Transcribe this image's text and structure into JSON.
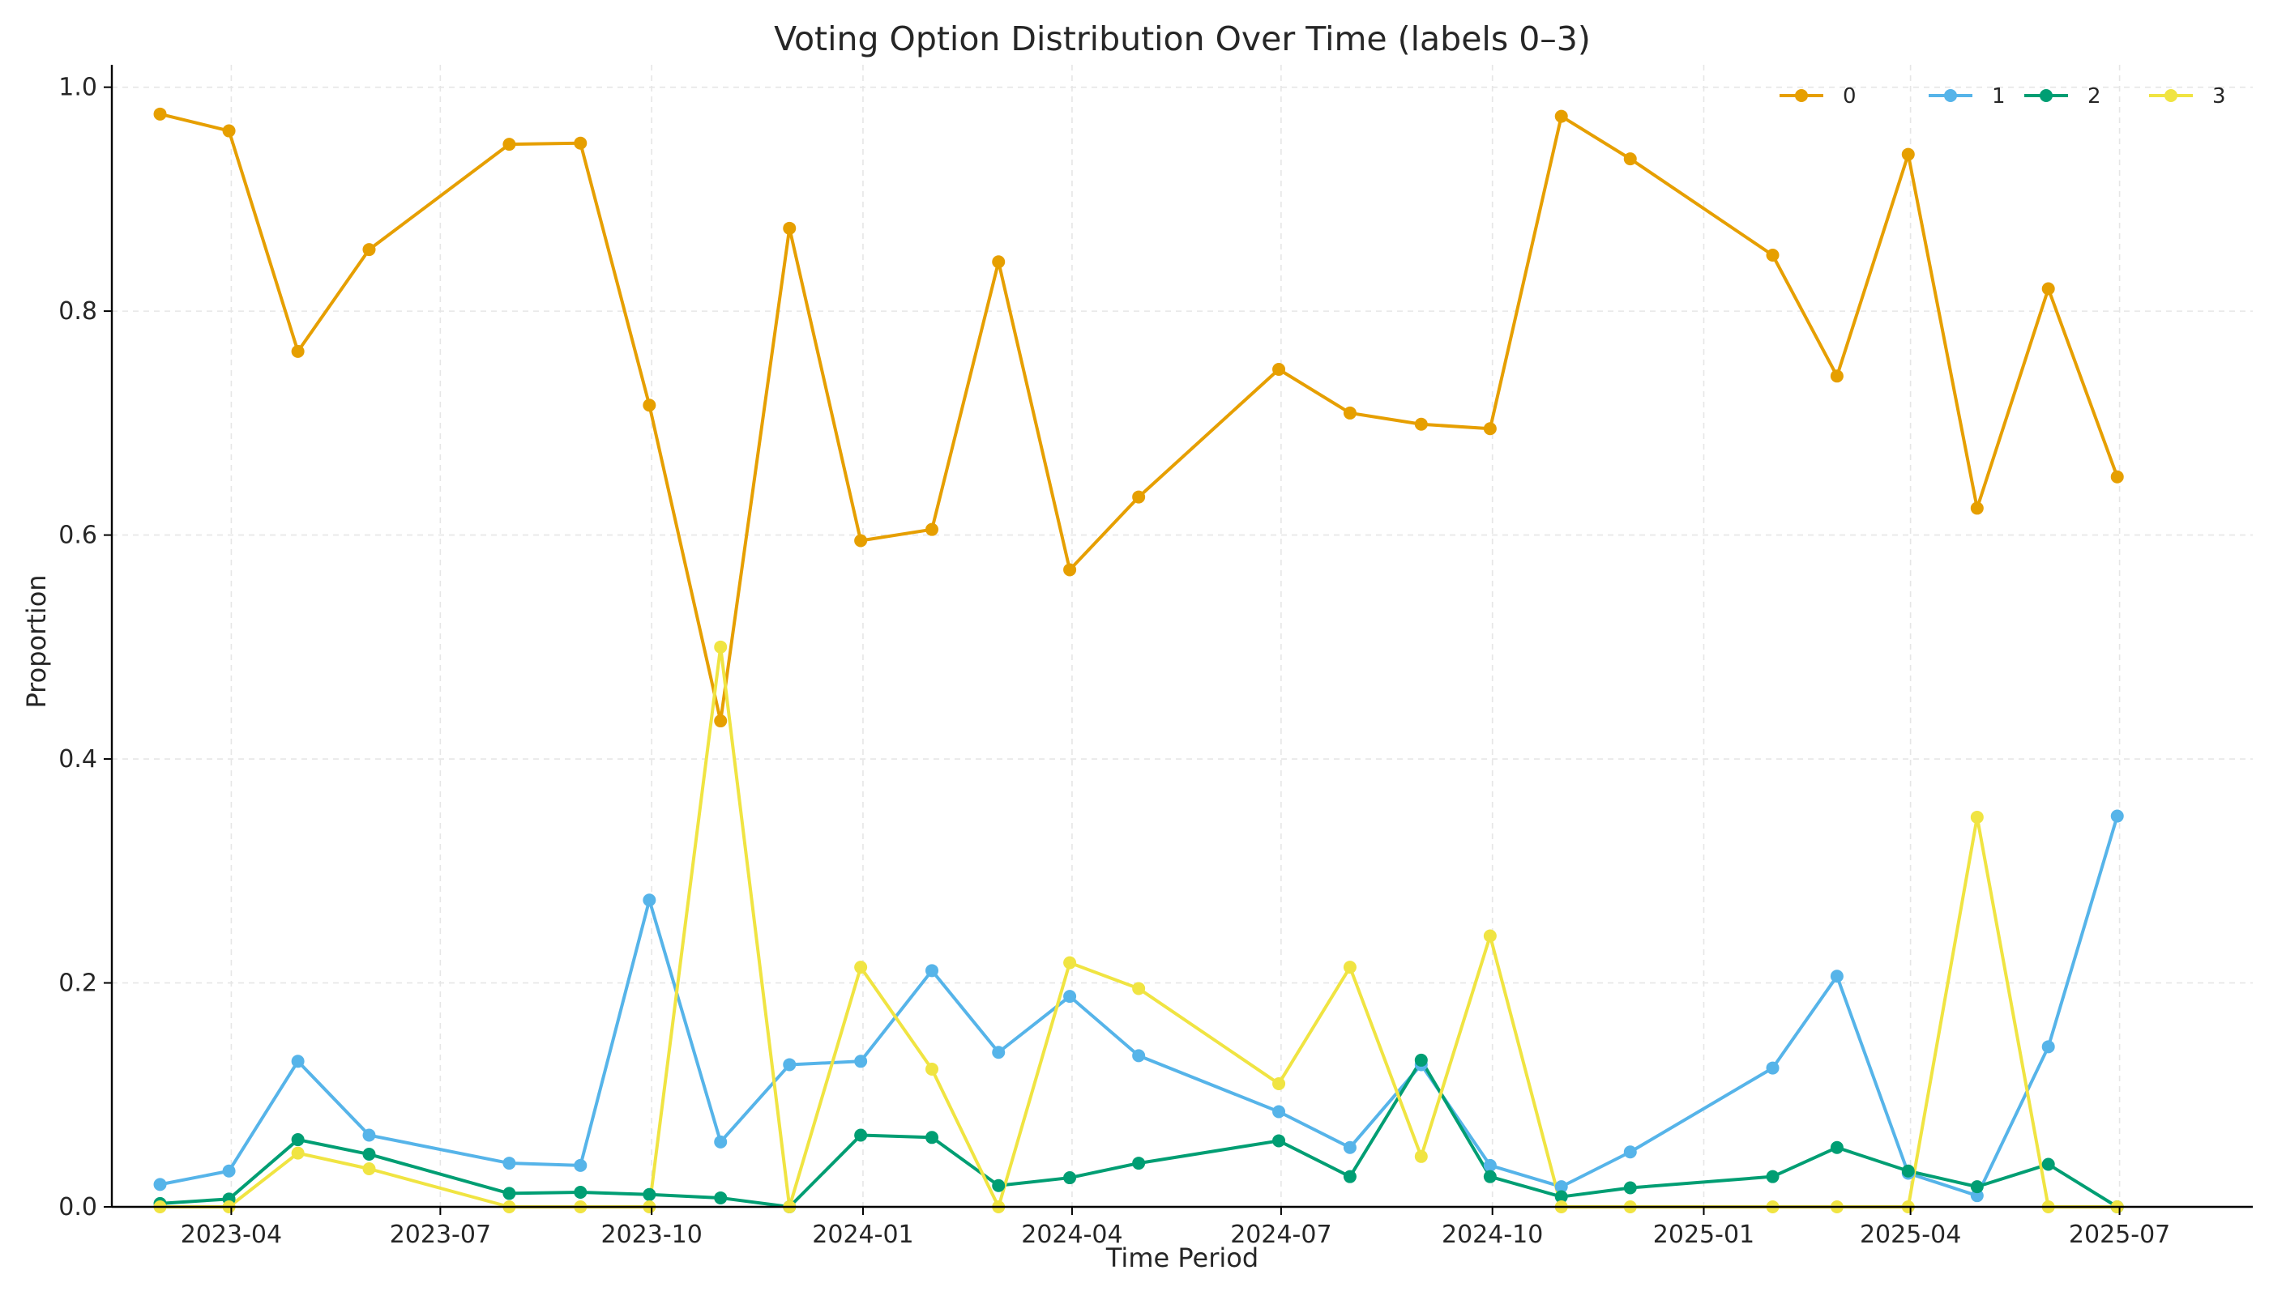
{
  "chart_data": {
    "type": "line",
    "title": "Voting Option Distribution Over Time (labels 0–3)",
    "xlabel": "Time Period",
    "ylabel": "Proportion",
    "x_type": "date",
    "xlim": [
      "2023-02-08",
      "2025-08-28"
    ],
    "ylim": [
      0.0,
      1.02
    ],
    "x_ticks": [
      {
        "date": "2023-04-01",
        "label": "2023-04"
      },
      {
        "date": "2023-07-01",
        "label": "2023-07"
      },
      {
        "date": "2023-10-01",
        "label": "2023-10"
      },
      {
        "date": "2024-01-01",
        "label": "2024-01"
      },
      {
        "date": "2024-04-01",
        "label": "2024-04"
      },
      {
        "date": "2024-07-01",
        "label": "2024-07"
      },
      {
        "date": "2024-10-01",
        "label": "2024-10"
      },
      {
        "date": "2025-01-01",
        "label": "2025-01"
      },
      {
        "date": "2025-04-01",
        "label": "2025-04"
      },
      {
        "date": "2025-07-01",
        "label": "2025-07"
      }
    ],
    "y_ticks": [
      {
        "value": 0.0,
        "label": "0.0"
      },
      {
        "value": 0.2,
        "label": "0.2"
      },
      {
        "value": 0.4,
        "label": "0.4"
      },
      {
        "value": 0.6,
        "label": "0.6"
      },
      {
        "value": 0.8,
        "label": "0.8"
      },
      {
        "value": 1.0,
        "label": "1.0"
      }
    ],
    "grid": true,
    "legend_position": "top-right",
    "x": [
      "2023-03-01",
      "2023-03-31",
      "2023-04-30",
      "2023-05-31",
      "2023-07-31",
      "2023-08-31",
      "2023-09-30",
      "2023-10-31",
      "2023-11-30",
      "2023-12-31",
      "2024-01-31",
      "2024-02-29",
      "2024-03-31",
      "2024-04-30",
      "2024-06-30",
      "2024-07-31",
      "2024-08-31",
      "2024-09-30",
      "2024-10-31",
      "2024-11-30",
      "2025-01-31",
      "2025-02-28",
      "2025-03-31",
      "2025-04-30",
      "2025-05-31",
      "2025-06-30"
    ],
    "series": [
      {
        "name": "0",
        "color": "#E69F00",
        "values": [
          0.976,
          0.961,
          0.764,
          0.855,
          0.949,
          0.95,
          0.716,
          0.434,
          0.874,
          0.595,
          0.605,
          0.844,
          0.569,
          0.634,
          0.748,
          0.709,
          0.699,
          0.695,
          0.974,
          0.936,
          0.85,
          0.742,
          0.94,
          0.624,
          0.82,
          0.652
        ]
      },
      {
        "name": "1",
        "color": "#56B4E9",
        "values": [
          0.02,
          0.032,
          0.13,
          0.064,
          0.039,
          0.037,
          0.274,
          0.058,
          0.127,
          0.13,
          0.211,
          0.138,
          0.188,
          0.135,
          0.085,
          0.053,
          0.127,
          0.037,
          0.018,
          0.049,
          0.124,
          0.206,
          0.03,
          0.01,
          0.143,
          0.349
        ]
      },
      {
        "name": "2",
        "color": "#009E73",
        "values": [
          0.003,
          0.007,
          0.06,
          0.047,
          0.012,
          0.013,
          0.011,
          0.008,
          0.0,
          0.064,
          0.062,
          0.019,
          0.026,
          0.039,
          0.059,
          0.027,
          0.131,
          0.027,
          0.009,
          0.017,
          0.027,
          0.053,
          0.032,
          0.018,
          0.038,
          0.0
        ]
      },
      {
        "name": "3",
        "color": "#F0E442",
        "values": [
          0.0,
          0.0,
          0.048,
          0.034,
          0.0,
          0.0,
          0.0,
          0.5,
          0.0,
          0.214,
          0.123,
          0.0,
          0.218,
          0.195,
          0.11,
          0.214,
          0.045,
          0.242,
          0.0,
          0.0,
          0.0,
          0.0,
          0.0,
          0.348,
          0.0,
          0.0
        ]
      }
    ]
  }
}
